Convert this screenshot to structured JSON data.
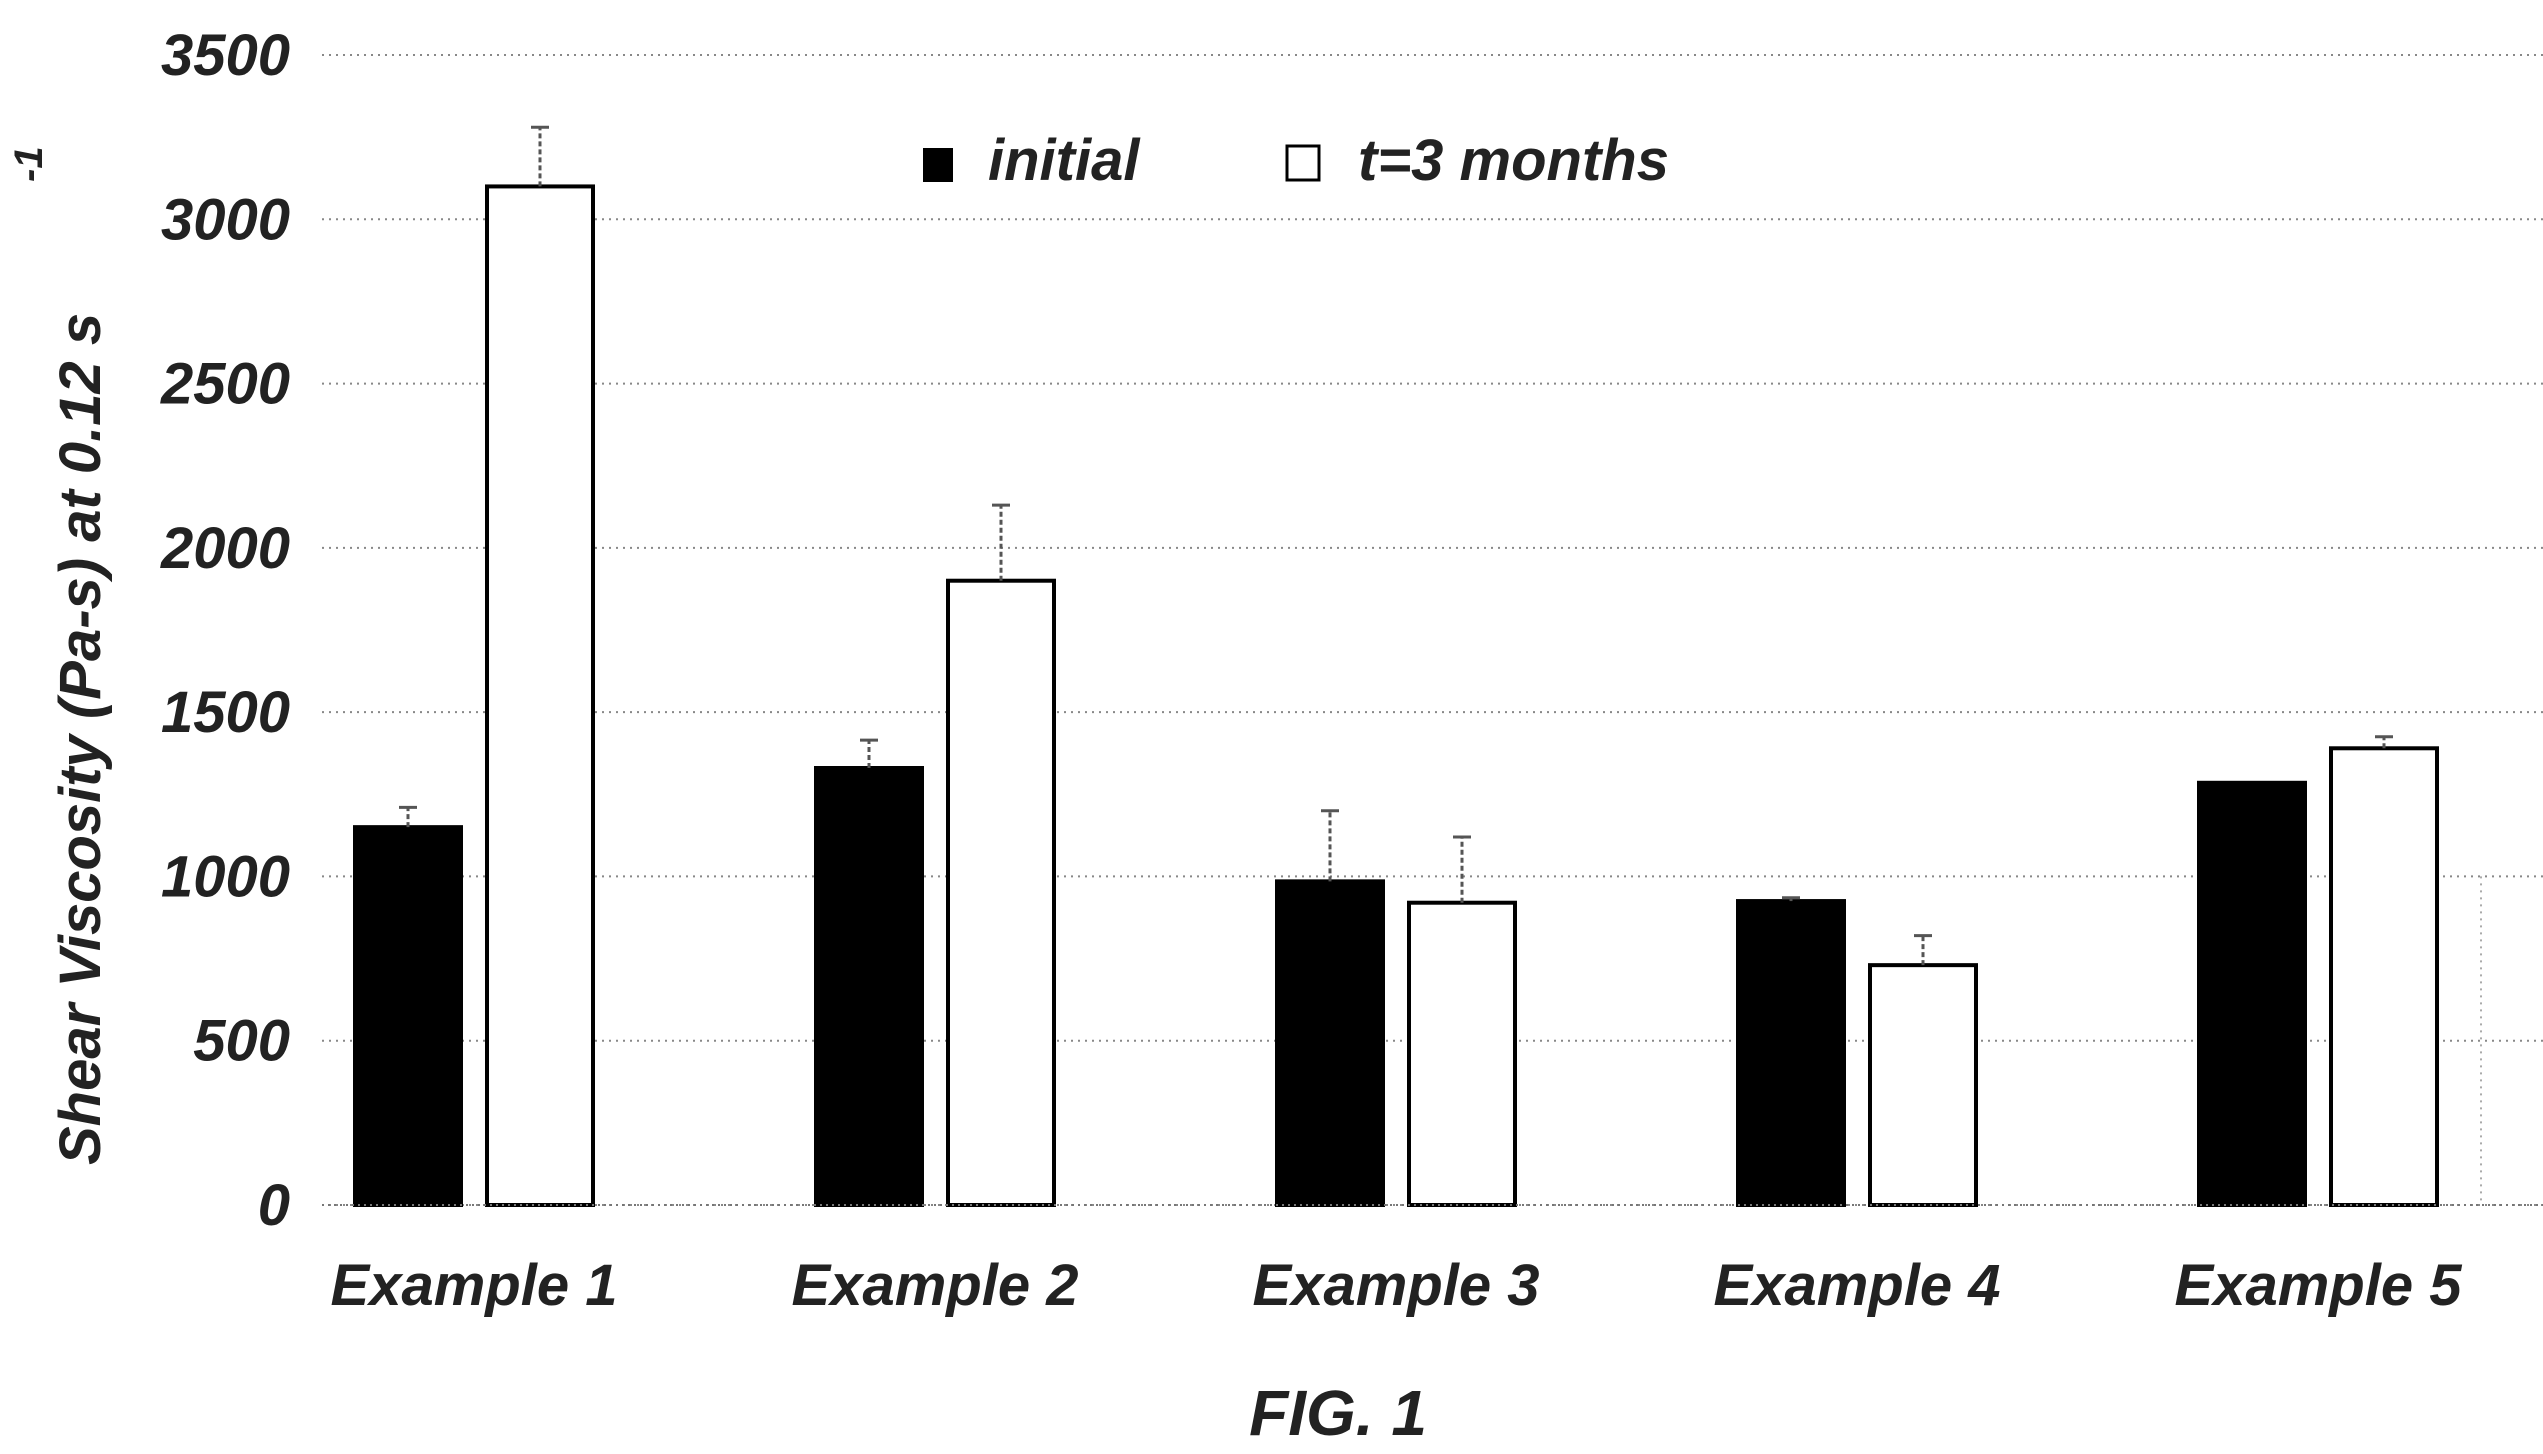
{
  "chart_data": {
    "type": "bar",
    "title": "",
    "caption": "FIG. 1",
    "xlabel": "",
    "ylabel": "Shear Viscosity (Pa-s) at 0.12 s",
    "ylabel_superscript": "-1",
    "ylim": [
      0,
      3500
    ],
    "yticks": [
      0,
      500,
      1000,
      1500,
      2000,
      2500,
      3000,
      3500
    ],
    "grid": "horizontal-dotted",
    "legend_position": "top-center",
    "categories": [
      "Example 1",
      "Example 2",
      "Example 3",
      "Example 4",
      "Example 5"
    ],
    "series": [
      {
        "name": "initial",
        "color": "#000000",
        "values": [
          1150,
          1330,
          985,
          925,
          1285
        ],
        "error": [
          60,
          85,
          215,
          10,
          0
        ]
      },
      {
        "name": "t=3 months",
        "color": "#ffffff",
        "values": [
          3100,
          1900,
          920,
          730,
          1390
        ],
        "error": [
          180,
          230,
          200,
          90,
          35
        ]
      }
    ]
  }
}
